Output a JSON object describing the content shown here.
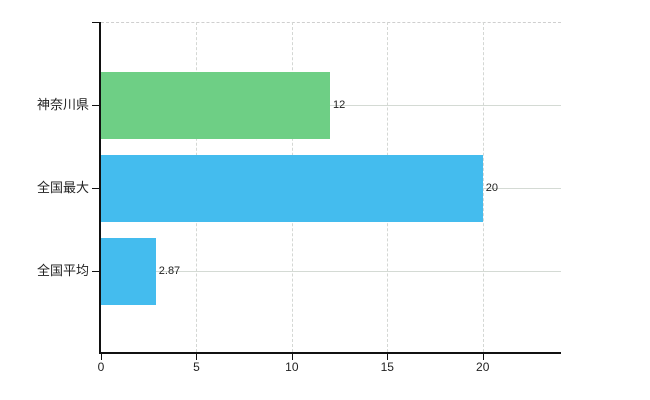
{
  "chart_data": {
    "type": "bar",
    "orientation": "horizontal",
    "title": "",
    "xlabel": "",
    "ylabel": "",
    "categories": [
      "神奈川県",
      "全国最大",
      "全国平均"
    ],
    "values": [
      12,
      20,
      2.87
    ],
    "value_labels": [
      "12",
      "20",
      "2.87"
    ],
    "bar_colors": [
      "#6ecf85",
      "#44bcee",
      "#44bcee"
    ],
    "x_ticks": [
      0,
      5,
      10,
      15,
      20
    ],
    "x_tick_labels": [
      "0",
      "5",
      "10",
      "15",
      "20"
    ],
    "xlim": [
      0,
      24.1
    ],
    "grid": true,
    "legend": "none",
    "colors": {
      "green_bar": "#6ecf85",
      "blue_bar": "#44bcee",
      "gridline": "#d4d7d4",
      "axis": "#111111",
      "text": "#222222",
      "background": "#ffffff"
    }
  }
}
